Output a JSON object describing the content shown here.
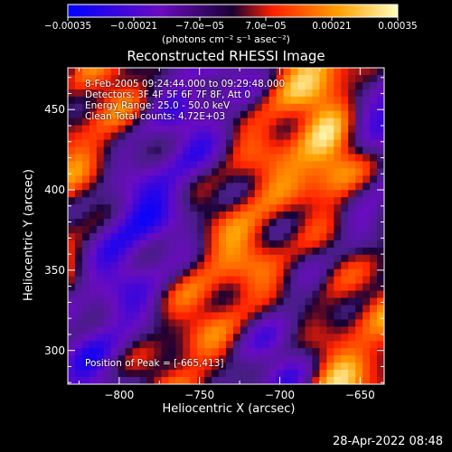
{
  "chart_data": {
    "type": "heatmap",
    "title": "Reconstructed RHESSI Image",
    "xlabel": "Heliocentric X (arcsec)",
    "ylabel": "Heliocentric Y (arcsec)",
    "xlim": [
      -832,
      -635
    ],
    "ylim": [
      279,
      476
    ],
    "x_ticks": [
      -800,
      -750,
      -700,
      -650
    ],
    "y_ticks": [
      300,
      350,
      400,
      450
    ],
    "x_tick_labels": [
      "−800",
      "−750",
      "−700",
      "−650"
    ],
    "y_tick_labels": [
      "300",
      "350",
      "400",
      "450"
    ],
    "colorbar": {
      "range": [
        -0.00035,
        0.00035
      ],
      "ticks": [
        -0.00035,
        -0.00021,
        -7e-05,
        7e-05,
        0.00021,
        0.00035
      ],
      "tick_labels": [
        "−0.00035",
        "−0.00021",
        "−7.0e−05",
        "7.0e−05",
        "0.00021",
        "0.00035"
      ],
      "unit": "(photons cm⁻² s⁻¹ asec⁻²)",
      "colors": [
        "#0000ff",
        "#6a0cc0",
        "#1a0033",
        "#ff2000",
        "#ffa000",
        "#ffffc0"
      ]
    },
    "annotations": [
      "8-Feb-2005 09:24:44.000 to 09:29:48.000",
      "Detectors: 3F 4F 5F 6F 7F 8F, Att 0",
      "Energy Range: 25.0 - 50.0 keV",
      "Clean    Total counts: 4.72E+03"
    ],
    "peak_label": "Position of Peak = [-665,413]",
    "peak": {
      "x": -665,
      "y": 413
    }
  },
  "timestamp": "28-Apr-2022 08:48"
}
